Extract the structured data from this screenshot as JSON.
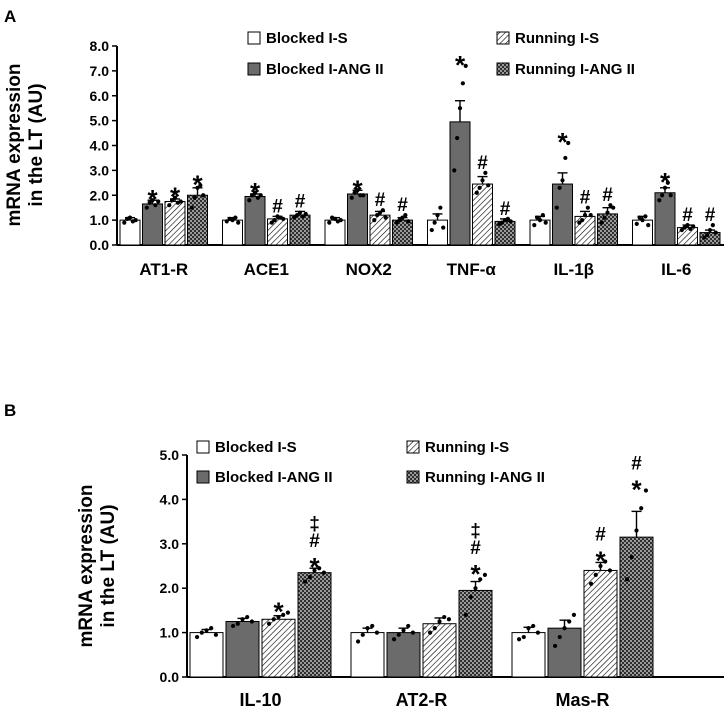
{
  "colors": {
    "blocked_s": "#ffffff",
    "blocked_ang": "#6b6b6b",
    "running_s": "#ffffff",
    "running_ang": "#bdbdbd",
    "outline": "#000000"
  },
  "legend": [
    {
      "name": "Blocked I-S",
      "pattern": "white"
    },
    {
      "name": "Running I-S",
      "pattern": "hatch"
    },
    {
      "name": "Blocked I-ANG II",
      "pattern": "grey"
    },
    {
      "name": "Running I-ANG II",
      "pattern": "check"
    }
  ],
  "chart_data": [
    {
      "panel": "A",
      "type": "bar",
      "ylabel_line1": "mRNA expression",
      "ylabel_line2": "in the LT (AU)",
      "ylim": [
        0,
        8
      ],
      "yticks": [
        "0.0",
        "1.0",
        "2.0",
        "3.0",
        "4.0",
        "5.0",
        "6.0",
        "7.0",
        "8.0"
      ],
      "categories": [
        "AT1-R",
        "ACE1",
        "NOX2",
        "TNF-α",
        "IL-1β",
        "IL-6"
      ],
      "legend_order": [
        "Blocked I-S",
        "Running I-S",
        "Blocked I-ANG II",
        "Running I-ANG II"
      ],
      "series": [
        {
          "name": "Blocked I-S",
          "values": [
            1.0,
            1.0,
            1.0,
            1.0,
            1.0,
            1.0
          ],
          "err": [
            0.1,
            0.1,
            0.1,
            0.25,
            0.15,
            0.15
          ]
        },
        {
          "name": "Blocked I-ANG II",
          "values": [
            1.65,
            1.95,
            2.05,
            4.95,
            2.45,
            2.1
          ],
          "err": [
            0.15,
            0.1,
            0.15,
            0.85,
            0.45,
            0.2
          ]
        },
        {
          "name": "Running I-S",
          "values": [
            1.75,
            1.05,
            1.2,
            2.45,
            1.15,
            0.7
          ],
          "err": [
            0.1,
            0.1,
            0.15,
            0.3,
            0.2,
            0.1
          ]
        },
        {
          "name": "Running I-ANG II",
          "values": [
            2.0,
            1.2,
            1.0,
            0.95,
            1.25,
            0.5
          ],
          "err": [
            0.3,
            0.15,
            0.1,
            0.1,
            0.25,
            0.1
          ]
        }
      ],
      "points": [
        [
          [
            0.9,
            1.05,
            1.1,
            0.95,
            1.0
          ],
          [
            0.95,
            1.05,
            1.0,
            1.1,
            0.9
          ],
          [
            0.9,
            1.1,
            1.05,
            0.95,
            1.0
          ],
          [
            0.6,
            0.9,
            1.2,
            1.5,
            0.7
          ],
          [
            0.8,
            1.1,
            1.0,
            1.2,
            0.9
          ],
          [
            0.85,
            1.1,
            1.0,
            1.15,
            0.8
          ]
        ],
        [
          [
            1.5,
            1.7,
            1.8,
            1.6,
            1.75
          ],
          [
            1.8,
            2.0,
            2.1,
            1.9,
            2.0
          ],
          [
            1.9,
            2.1,
            2.2,
            2.0,
            2.0
          ],
          [
            3.0,
            4.3,
            5.5,
            6.5,
            7.2
          ],
          [
            1.5,
            2.3,
            2.6,
            3.5,
            4.1
          ],
          [
            1.8,
            2.0,
            2.3,
            2.5,
            2.0
          ]
        ],
        [
          [
            1.6,
            1.8,
            1.9,
            1.7,
            1.75
          ],
          [
            0.9,
            1.0,
            1.15,
            1.1,
            1.05
          ],
          [
            1.0,
            1.2,
            1.3,
            1.4,
            1.1
          ],
          [
            2.1,
            2.3,
            2.6,
            2.9,
            2.4
          ],
          [
            0.9,
            1.0,
            1.2,
            1.5,
            1.2
          ],
          [
            0.6,
            0.7,
            0.8,
            0.65,
            0.75
          ]
        ],
        [
          [
            1.5,
            1.9,
            2.3,
            2.4,
            2.0
          ],
          [
            1.1,
            1.2,
            1.3,
            1.15,
            1.25
          ],
          [
            0.9,
            1.0,
            1.1,
            1.2,
            0.95
          ],
          [
            0.85,
            0.9,
            1.0,
            1.05,
            0.95
          ],
          [
            0.9,
            1.1,
            1.3,
            1.6,
            1.5
          ],
          [
            0.3,
            0.4,
            0.6,
            0.8,
            0.5
          ]
        ]
      ],
      "markers": [
        [
          "",
          "",
          "",
          "",
          "",
          ""
        ],
        [
          "*",
          "*",
          "*",
          "*",
          "*",
          "*"
        ],
        [
          "*",
          "#",
          "#",
          "#",
          "#",
          "#"
        ],
        [
          "*",
          "#",
          "#",
          "#",
          "#",
          "#"
        ]
      ]
    },
    {
      "panel": "B",
      "type": "bar",
      "ylabel_line1": "mRNA expression",
      "ylabel_line2": "in the LT (AU)",
      "ylim": [
        0,
        5
      ],
      "yticks": [
        "0.0",
        "1.0",
        "2.0",
        "3.0",
        "4.0",
        "5.0"
      ],
      "categories": [
        "IL-10",
        "AT2-R",
        "Mas-R"
      ],
      "legend_order": [
        "Blocked I-S",
        "Running I-S",
        "Blocked I-ANG II",
        "Running I-ANG II"
      ],
      "series": [
        {
          "name": "Blocked I-S",
          "values": [
            1.0,
            1.0,
            1.0
          ],
          "err": [
            0.07,
            0.1,
            0.12
          ]
        },
        {
          "name": "Blocked I-ANG II",
          "values": [
            1.25,
            1.0,
            1.1
          ],
          "err": [
            0.07,
            0.1,
            0.18
          ]
        },
        {
          "name": "Running I-S",
          "values": [
            1.3,
            1.2,
            2.4
          ],
          "err": [
            0.08,
            0.13,
            0.18
          ]
        },
        {
          "name": "Running I-ANG II",
          "values": [
            2.35,
            1.95,
            3.15
          ],
          "err": [
            0.1,
            0.2,
            0.58
          ]
        }
      ],
      "points": [
        [
          [
            0.9,
            1.0,
            1.05,
            1.1,
            0.95
          ],
          [
            0.8,
            0.95,
            1.1,
            1.15,
            1.0
          ],
          [
            0.85,
            0.9,
            1.1,
            1.15,
            1.0
          ]
        ],
        [
          [
            1.15,
            1.2,
            1.3,
            1.35,
            1.25
          ],
          [
            0.85,
            0.95,
            1.05,
            1.15,
            1.0
          ],
          [
            0.7,
            0.9,
            1.1,
            1.25,
            1.4
          ]
        ],
        [
          [
            1.2,
            1.3,
            1.35,
            1.4,
            1.45
          ],
          [
            1.0,
            1.1,
            1.25,
            1.35,
            1.3
          ],
          [
            2.1,
            2.3,
            2.5,
            2.6,
            2.4
          ]
        ],
        [
          [
            2.15,
            2.25,
            2.4,
            2.45,
            2.35
          ],
          [
            1.4,
            1.8,
            2.0,
            2.2,
            2.3
          ],
          [
            2.2,
            2.7,
            3.3,
            3.8,
            4.2
          ]
        ]
      ],
      "markers": [
        [
          "",
          "",
          ""
        ],
        [
          "",
          "",
          ""
        ],
        [
          "*",
          "",
          "*\n#"
        ],
        [
          "*\n#\n‡",
          "*\n#\n‡",
          "*\n#"
        ]
      ]
    }
  ]
}
